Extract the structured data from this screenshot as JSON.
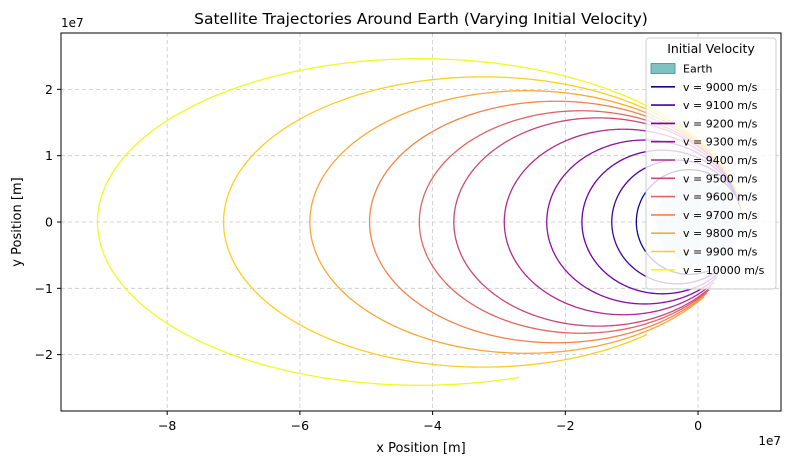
{
  "chart_data": {
    "type": "line",
    "title": "Satellite Trajectories Around Earth (Varying Initial Velocity)",
    "xlabel": "x Position [m]",
    "ylabel": "y Position [m]",
    "x_offset_label": "1e7",
    "y_offset_label": "1e7",
    "xlim": [
      -9.6,
      1.25
    ],
    "ylim": [
      -2.85,
      2.85
    ],
    "xticks": [
      -8,
      -6,
      -4,
      -2,
      0
    ],
    "yticks": [
      -2,
      -1,
      0,
      1,
      2
    ],
    "xtick_labels": [
      "−8",
      "−6",
      "−4",
      "−2",
      "0"
    ],
    "ytick_labels": [
      "−2",
      "−1",
      "0",
      "1",
      "2"
    ],
    "grid": true,
    "legend": {
      "title": "Initial Velocity",
      "placement": "top-right"
    },
    "earth": {
      "name": "Earth",
      "center": [
        0,
        0
      ],
      "radius": 0.6371,
      "color": "#5fb3b3"
    },
    "series": [
      {
        "name": "v = 9000 m/s",
        "color": "#0d0887",
        "periapsis": 0.67,
        "apoapsis": 0.93,
        "end_x": 0.2,
        "end_y": -0.85
      },
      {
        "name": "v = 9100 m/s",
        "color": "#41049d",
        "periapsis": 0.67,
        "apoapsis": 1.3,
        "end_x": 0.38,
        "end_y": -0.95
      },
      {
        "name": "v = 9200 m/s",
        "color": "#6a00a8",
        "periapsis": 0.67,
        "apoapsis": 1.75,
        "end_x": 0.5,
        "end_y": -0.97
      },
      {
        "name": "v = 9300 m/s",
        "color": "#8f0da4",
        "periapsis": 0.67,
        "apoapsis": 2.28,
        "end_x": 0.55,
        "end_y": -1.05
      },
      {
        "name": "v = 9400 m/s",
        "color": "#b12a90",
        "periapsis": 0.67,
        "apoapsis": 2.92,
        "end_x": 0.57,
        "end_y": -1.12
      },
      {
        "name": "v = 9500 m/s",
        "color": "#cc4778",
        "periapsis": 0.67,
        "apoapsis": 3.68,
        "end_x": 0.59,
        "end_y": -1.2
      },
      {
        "name": "v = 9600 m/s",
        "color": "#e16462",
        "periapsis": 0.67,
        "apoapsis": 4.2,
        "end_x": 0.6,
        "end_y": -1.25
      },
      {
        "name": "v = 9700 m/s",
        "color": "#f2844b",
        "periapsis": 0.67,
        "apoapsis": 4.95,
        "end_x": 0.62,
        "end_y": -1.3
      },
      {
        "name": "v = 9800 m/s",
        "color": "#fca636",
        "periapsis": 0.67,
        "apoapsis": 5.85,
        "end_x": 0.63,
        "end_y": -1.35
      },
      {
        "name": "v = 9900 m/s",
        "color": "#fcce25",
        "periapsis": 0.67,
        "apoapsis": 7.15,
        "end_x": -0.4,
        "end_y": -1.95
      },
      {
        "name": "v = 10000 m/s",
        "color": "#f0f921",
        "periapsis": 0.67,
        "apoapsis": 9.05,
        "end_x": -2.62,
        "end_y": -2.46
      }
    ]
  }
}
